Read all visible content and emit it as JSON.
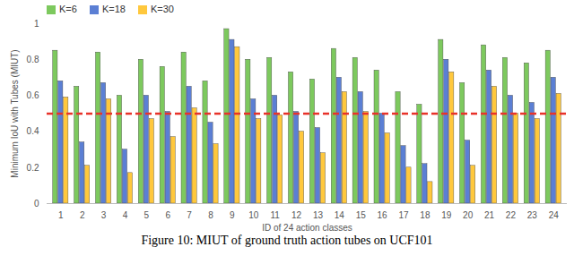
{
  "chart_data": {
    "type": "bar",
    "caption": "Figure 10: MIUT of ground truth action tubes on UCF101",
    "x_label": "ID of 24 action classes",
    "y_label": "Minimum IoU with Tubes (MIUT)",
    "categories": [
      "1",
      "2",
      "3",
      "4",
      "5",
      "6",
      "7",
      "8",
      "9",
      "10",
      "11",
      "12",
      "13",
      "14",
      "15",
      "16",
      "17",
      "18",
      "19",
      "20",
      "21",
      "22",
      "23",
      "24"
    ],
    "series": [
      {
        "name": "K=6",
        "color": "#7dc95e",
        "values": [
          0.85,
          0.65,
          0.84,
          0.6,
          0.8,
          0.76,
          0.84,
          0.68,
          0.97,
          0.8,
          0.81,
          0.73,
          0.69,
          0.86,
          0.81,
          0.74,
          0.62,
          0.55,
          0.91,
          0.67,
          0.88,
          0.81,
          0.78,
          0.85
        ]
      },
      {
        "name": "K=18",
        "color": "#5b7fd4",
        "values": [
          0.68,
          0.34,
          0.67,
          0.3,
          0.6,
          0.51,
          0.65,
          0.45,
          0.91,
          0.58,
          0.6,
          0.51,
          0.42,
          0.7,
          0.62,
          0.5,
          0.32,
          0.22,
          0.8,
          0.35,
          0.74,
          0.6,
          0.56,
          0.7
        ]
      },
      {
        "name": "K=30",
        "color": "#ffc83d",
        "values": [
          0.59,
          0.21,
          0.58,
          0.17,
          0.47,
          0.37,
          0.53,
          0.33,
          0.87,
          0.47,
          0.49,
          0.4,
          0.28,
          0.62,
          0.51,
          0.39,
          0.2,
          0.12,
          0.73,
          0.21,
          0.65,
          0.5,
          0.47,
          0.61
        ]
      }
    ],
    "threshold": 0.5,
    "ylim": [
      0,
      1
    ],
    "yticks": [
      0,
      0.2,
      0.4,
      0.6,
      0.8,
      1
    ],
    "grid": false,
    "legend": "top"
  }
}
